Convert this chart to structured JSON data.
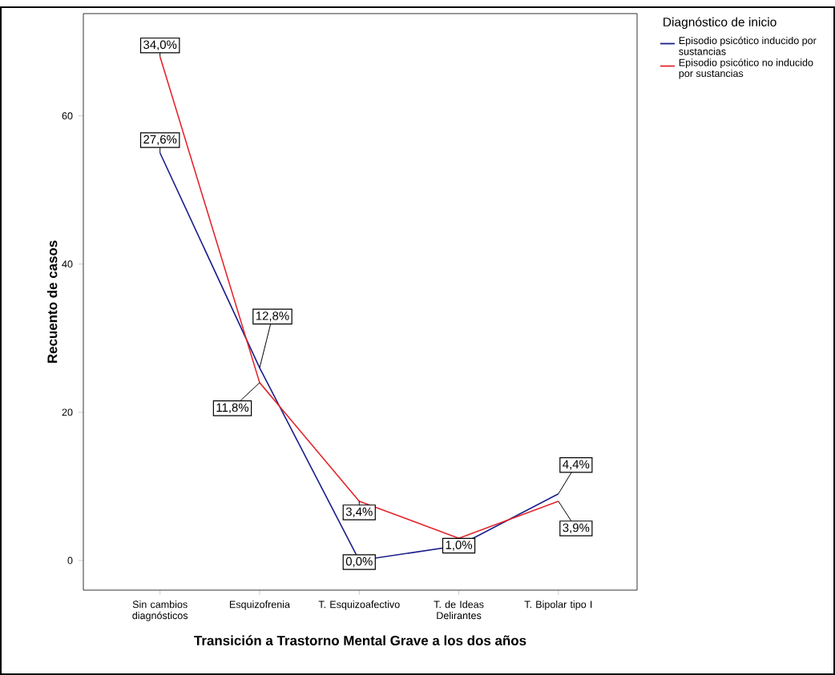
{
  "chart_data": {
    "type": "line",
    "xlabel": "Transición a Trastorno Mental Grave a los dos años",
    "ylabel": "Recuento de casos",
    "legend_title": "Diagnóstico de inicio",
    "categories": [
      "Sin cambios diagnósticos",
      "Esquizofrenia",
      "T. Esquizoafectivo",
      "T. de Ideas Delirantes",
      "T. Bipolar tipo I"
    ],
    "ylim": [
      -4,
      73.8
    ],
    "yticks": [
      0,
      20,
      40,
      60
    ],
    "legend": "top right",
    "grid": false,
    "marker": "none",
    "line_style": "solid",
    "series": [
      {
        "name": "Episodio psicótico inducido por sustancias",
        "color": "#1a1f8c",
        "values": [
          55,
          26,
          0,
          2,
          9
        ]
      },
      {
        "name": "Episodio psicótico no inducido por sustancias",
        "color": "#e3262b",
        "values": [
          68,
          24,
          8,
          3,
          8
        ]
      }
    ],
    "annotations": [
      {
        "text": "27,6%",
        "x": "Sin cambios diagnósticos",
        "y": 55
      },
      {
        "text": "12,8%",
        "x": "Esquizofrenia",
        "y": 26
      },
      {
        "text": "0,0%",
        "x": "T. Esquizoafectivo",
        "y": 0
      },
      {
        "text": "1,0%",
        "x": "T. de Ideas Delirantes",
        "y": 2
      },
      {
        "text": "4,4%",
        "x": "T. Bipolar tipo I",
        "y": 9
      },
      {
        "text": "34,0%",
        "x": "Sin cambios diagnósticos",
        "y": 68
      },
      {
        "text": "11,8%",
        "x": "Esquizofrenia",
        "y": 24
      },
      {
        "text": "3,4%",
        "x": "T. Esquizoafectivo",
        "y": 8
      },
      {
        "text": "3,9%",
        "x": "T. Bipolar tipo I",
        "y": 8
      }
    ]
  }
}
